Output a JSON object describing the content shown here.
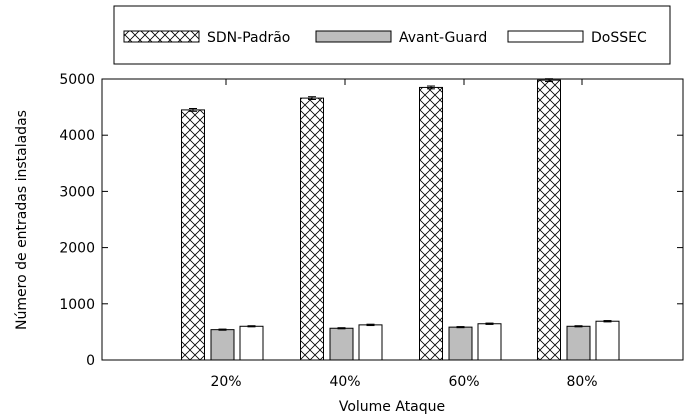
{
  "chart_data": {
    "type": "bar",
    "title": "",
    "xlabel": "Volume Ataque",
    "ylabel": "Número de entradas instaladas",
    "categories": [
      "20%",
      "40%",
      "60%",
      "80%"
    ],
    "ylim": [
      0,
      5000
    ],
    "yticks": [
      0,
      1000,
      2000,
      3000,
      4000,
      5000
    ],
    "grid": false,
    "legend_position": "top",
    "series": [
      {
        "name": "SDN-Padrão",
        "values": [
          4450,
          4660,
          4850,
          4980
        ],
        "errors": [
          25,
          25,
          25,
          25
        ],
        "fill": "crosshatch"
      },
      {
        "name": "Avant-Guard",
        "values": [
          540,
          565,
          585,
          600
        ],
        "errors": [
          10,
          10,
          10,
          10
        ],
        "fill": "#bdbdbd"
      },
      {
        "name": "DoSSEC",
        "values": [
          600,
          625,
          645,
          690
        ],
        "errors": [
          10,
          12,
          12,
          12
        ],
        "fill": "#ffffff"
      }
    ]
  }
}
